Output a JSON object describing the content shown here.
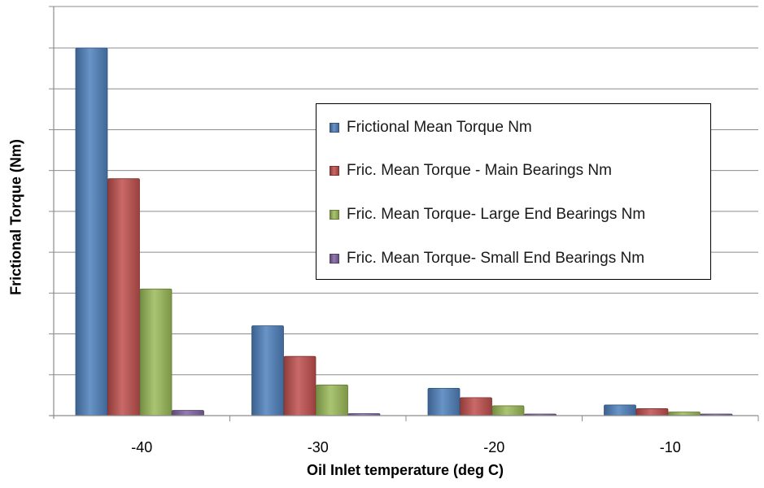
{
  "chart_data": {
    "type": "bar",
    "title": "",
    "xlabel": "Oil Inlet temperature (deg C)",
    "ylabel": "Frictional Torque (Nm)",
    "categories": [
      "-40",
      "-30",
      "-20",
      "-10"
    ],
    "ylim": [
      0,
      9
    ],
    "y_tick_labels_shown": false,
    "grid": true,
    "legend_position": "right",
    "series": [
      {
        "name": "Frictional Mean Torque Nm",
        "color": "#4f81bd",
        "values": [
          9.0,
          2.2,
          0.67,
          0.26
        ]
      },
      {
        "name": "Fric. Mean Torque  - Main Bearings Nm",
        "color": "#c0504d",
        "values": [
          5.8,
          1.45,
          0.44,
          0.17
        ]
      },
      {
        "name": "Fric. Mean Torque- Large End Bearings Nm",
        "color": "#9bbb59",
        "values": [
          3.1,
          0.75,
          0.24,
          0.09
        ]
      },
      {
        "name": "Fric. Mean Torque- Small End Bearings Nm",
        "color": "#8064a2",
        "values": [
          0.13,
          0.05,
          0.04,
          0.04
        ]
      }
    ]
  }
}
